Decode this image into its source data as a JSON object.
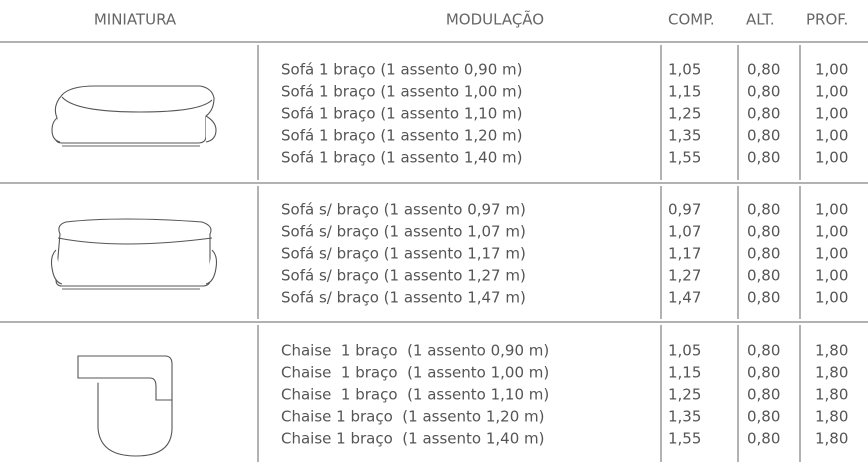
{
  "table": {
    "header": [
      "MINIATURA",
      "MODULAÇÃO",
      "COMP.",
      "ALT.",
      "PROF."
    ],
    "groups": [
      {
        "rows": [
          [
            "Sofá 1 braço (1 assento 0,90 m)",
            "1,05",
            "0,80",
            "1,00"
          ],
          [
            "Sofá 1 braço (1 assento 1,00 m)",
            "1,15",
            "0,80",
            "1,00"
          ],
          [
            "Sofá 1 braço (1 assento 1,10 m)",
            "1,25",
            "0,80",
            "1,00"
          ],
          [
            "Sofá 1 braço (1 assento 1,20 m)",
            "1,35",
            "0,80",
            "1,00"
          ],
          [
            "Sofá 1 braço (1 assento 1,40 m)",
            "1,55",
            "0,80",
            "1,00"
          ]
        ]
      },
      {
        "rows": [
          [
            "Sofá s/ braço (1 assento 0,97 m)",
            "0,97",
            "0,80",
            "1,00"
          ],
          [
            "Sofá s/ braço (1 assento 1,07 m)",
            "1,07",
            "0,80",
            "1,00"
          ],
          [
            "Sofá s/ braço (1 assento 1,17 m)",
            "1,17",
            "0,80",
            "1,00"
          ],
          [
            "Sofá s/ braço (1 assento 1,27 m)",
            "1,27",
            "0,80",
            "1,00"
          ],
          [
            "Sofá s/ braço (1 assento 1,47 m)",
            "1,47",
            "0,80",
            "1,00"
          ]
        ]
      },
      {
        "rows": [
          [
            "Chaise  1 braço  (1 assento 0,90 m)",
            "1,05",
            "0,80",
            "1,80"
          ],
          [
            "Chaise  1 braço  (1 assento 1,00 m)",
            "1,15",
            "0,80",
            "1,80"
          ],
          [
            "Chaise  1 braço  (1 assento 1,10 m)",
            "1,25",
            "0,80",
            "1,80"
          ],
          [
            "Chaise 1 braço  (1 assento 1,20 m)",
            "1,35",
            "0,80",
            "1,80"
          ],
          [
            "Chaise 1 braço  (1 assento 1,40 m)",
            "1,55",
            "0,80",
            "1,80"
          ]
        ]
      }
    ]
  }
}
